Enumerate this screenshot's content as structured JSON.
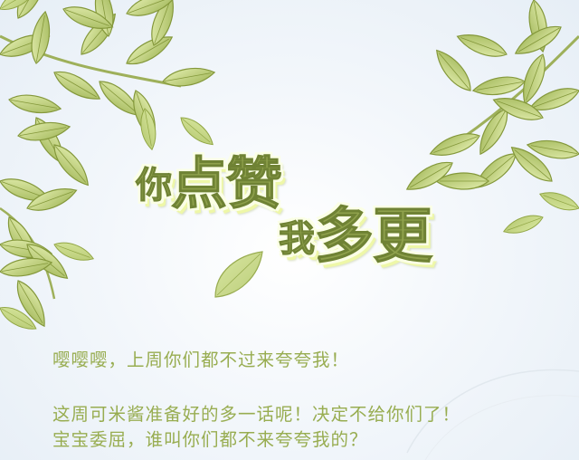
{
  "title": {
    "line1": [
      "你",
      "点赞"
    ],
    "line2": [
      "我",
      "多更"
    ]
  },
  "body": {
    "line1": "嘤嘤嘤，上周你们都不过来夸夸我！",
    "line2": "这周可米酱准备好的多一话呢！决定不给你们了！",
    "line3": "宝宝委屈，谁叫你们都不来夸夸我的？"
  },
  "colors": {
    "leaf_light": "#c9d98a",
    "leaf_dark": "#8fa23e",
    "title_fill": "#8fa14c",
    "text": "#98ad51"
  }
}
